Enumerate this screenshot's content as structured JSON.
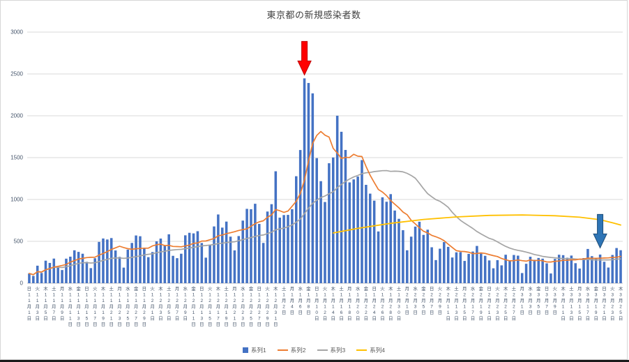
{
  "chart_data": {
    "type": "bar",
    "combo": "bar+line",
    "title": "東京都の新規感染者数",
    "ylim": [
      0,
      3000
    ],
    "y_ticks": [
      0,
      500,
      1000,
      1500,
      2000,
      2500,
      3000
    ],
    "grid": "horizontal",
    "x_axis": {
      "start_weekday": "日",
      "weekday_chars": [
        "日",
        "月",
        "火",
        "水",
        "木",
        "金",
        "土"
      ],
      "months": [
        {
          "month": 11,
          "days": 30
        },
        {
          "month": 12,
          "days": 31
        },
        {
          "month": 1,
          "days": 31
        },
        {
          "month": 2,
          "days": 28
        },
        {
          "month": 3,
          "days": 25
        }
      ],
      "label_every_n_days": 2,
      "month_suffix": "月",
      "day_suffix": "日"
    },
    "series": [
      {
        "name": "系列1",
        "type": "bar",
        "color": "#4472C4",
        "values": [
          116,
          87,
          209,
          122,
          269,
          242,
          294,
          189,
          157,
          293,
          317,
          393,
          374,
          352,
          255,
          180,
          298,
          493,
          534,
          522,
          539,
          391,
          314,
          186,
          401,
          481,
          570,
          561,
          418,
          311,
          372,
          500,
          533,
          449,
          584,
          327,
          299,
          352,
          572,
          602,
          595,
          621,
          480,
          305,
          460,
          678,
          821,
          664,
          736,
          556,
          392,
          563,
          748,
          888,
          884,
          949,
          708,
          481,
          856,
          944,
          1337,
          783,
          814,
          816,
          884,
          1278,
          1591,
          2447,
          2392,
          2268,
          1494,
          1219,
          970,
          1433,
          1502,
          2001,
          1809,
          1592,
          1204,
          1240,
          1274,
          1471,
          1175,
          1070,
          986,
          618,
          1026,
          973,
          1064,
          868,
          769,
          633,
          393,
          556,
          676,
          734,
          577,
          639,
          429,
          276,
          412,
          491,
          434,
          307,
          369,
          371,
          266,
          350,
          378,
          445,
          353,
          327,
          272,
          178,
          275,
          213,
          340,
          270,
          337,
          329,
          121,
          232,
          316,
          279,
          301,
          293,
          237,
          116,
          290,
          340,
          335,
          304,
          330,
          239,
          175,
          300,
          409,
          323,
          303,
          342,
          256,
          187,
          337,
          420,
          394
        ]
      },
      {
        "name": "系列2",
        "type": "line",
        "color": "#ED7D31",
        "estimated_window_days": 7,
        "peak_value_approx": 1820
      },
      {
        "name": "系列3",
        "type": "line",
        "color": "#A5A5A5",
        "estimated_window_days": 28,
        "peak_value_approx": 1350
      },
      {
        "name": "系列4",
        "type": "line",
        "color": "#FFC000",
        "anchors": [
          [
            74,
            600
          ],
          [
            80,
            655
          ],
          [
            88,
            715
          ],
          [
            96,
            762
          ],
          [
            104,
            792
          ],
          [
            112,
            810
          ],
          [
            120,
            815
          ],
          [
            128,
            806
          ],
          [
            134,
            788
          ],
          [
            139,
            758
          ],
          [
            142,
            722
          ],
          [
            144,
            695
          ]
        ]
      }
    ],
    "legend": {
      "position": "bottom",
      "items": [
        "系列1",
        "系列2",
        "系列3",
        "系列4"
      ]
    },
    "annotations": [
      {
        "name": "red-down-arrow",
        "shape": "down-arrow",
        "fill": "#FF0000",
        "border": "#C00000",
        "day_index": 67,
        "points_at_value": 2447
      },
      {
        "name": "blue-down-arrow",
        "shape": "down-arrow",
        "fill": "#2E75B6",
        "border": "#1F4E79",
        "day_index": 139,
        "points_at_value": 380
      }
    ],
    "colors": {
      "gridline": "#D9D9D9",
      "axis_line": "#BFBFBF",
      "axis_label": "#44546A",
      "title": "#404040",
      "legend_text": "#595959"
    }
  }
}
